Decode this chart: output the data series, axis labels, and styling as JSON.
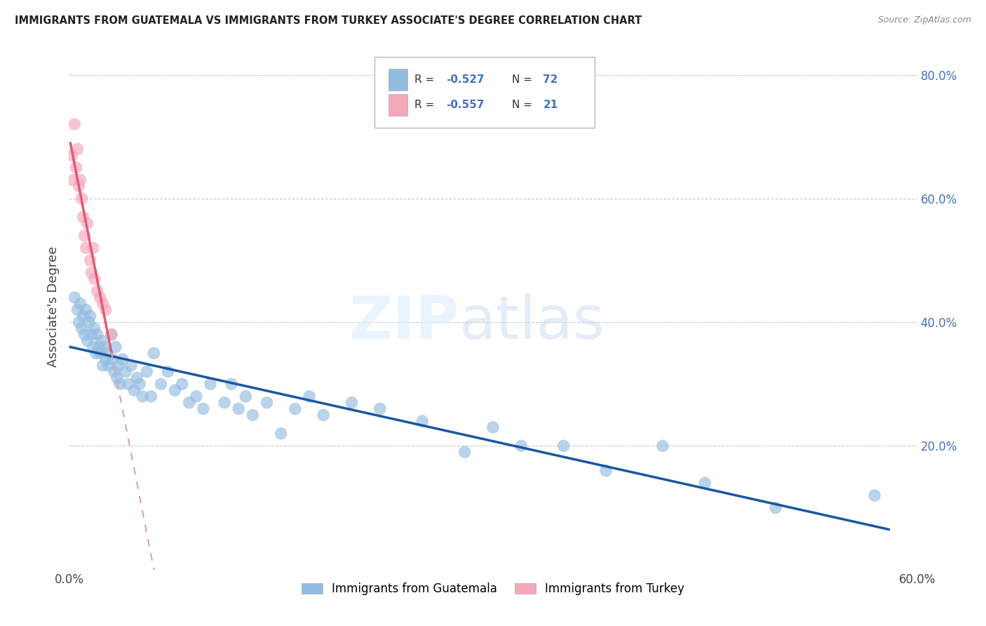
{
  "title": "IMMIGRANTS FROM GUATEMALA VS IMMIGRANTS FROM TURKEY ASSOCIATE'S DEGREE CORRELATION CHART",
  "source": "Source: ZipAtlas.com",
  "ylabel": "Associate's Degree",
  "legend_label1": "Immigrants from Guatemala",
  "legend_label2": "Immigrants from Turkey",
  "r1": "-0.527",
  "n1": "72",
  "r2": "-0.557",
  "n2": "21",
  "xlim": [
    0.0,
    0.6
  ],
  "ylim": [
    0.0,
    0.85
  ],
  "xtick_positions": [
    0.0,
    0.6
  ],
  "xtick_labels": [
    "0.0%",
    "60.0%"
  ],
  "yticks_right": [
    0.2,
    0.4,
    0.6,
    0.8
  ],
  "grid_yticks": [
    0.2,
    0.4,
    0.6,
    0.8
  ],
  "color_blue": "#92bce0",
  "color_pink": "#f4a7b9",
  "color_line_blue": "#1a56a0",
  "color_line_pink": "#e05a7a",
  "color_line_pink_dashed": "#dca0b0",
  "guatemala_x": [
    0.004,
    0.006,
    0.007,
    0.008,
    0.009,
    0.01,
    0.011,
    0.012,
    0.013,
    0.014,
    0.015,
    0.016,
    0.017,
    0.018,
    0.019,
    0.02,
    0.021,
    0.022,
    0.023,
    0.024,
    0.025,
    0.026,
    0.027,
    0.028,
    0.03,
    0.031,
    0.032,
    0.033,
    0.034,
    0.035,
    0.036,
    0.038,
    0.04,
    0.042,
    0.044,
    0.046,
    0.048,
    0.05,
    0.052,
    0.055,
    0.058,
    0.06,
    0.065,
    0.07,
    0.075,
    0.08,
    0.085,
    0.09,
    0.095,
    0.1,
    0.11,
    0.115,
    0.12,
    0.125,
    0.13,
    0.14,
    0.15,
    0.16,
    0.17,
    0.18,
    0.2,
    0.22,
    0.25,
    0.28,
    0.3,
    0.32,
    0.35,
    0.38,
    0.42,
    0.45,
    0.5,
    0.57
  ],
  "guatemala_y": [
    0.44,
    0.42,
    0.4,
    0.43,
    0.39,
    0.41,
    0.38,
    0.42,
    0.37,
    0.4,
    0.41,
    0.38,
    0.36,
    0.39,
    0.35,
    0.38,
    0.36,
    0.35,
    0.37,
    0.33,
    0.36,
    0.34,
    0.35,
    0.33,
    0.38,
    0.34,
    0.32,
    0.36,
    0.31,
    0.33,
    0.3,
    0.34,
    0.32,
    0.3,
    0.33,
    0.29,
    0.31,
    0.3,
    0.28,
    0.32,
    0.28,
    0.35,
    0.3,
    0.32,
    0.29,
    0.3,
    0.27,
    0.28,
    0.26,
    0.3,
    0.27,
    0.3,
    0.26,
    0.28,
    0.25,
    0.27,
    0.22,
    0.26,
    0.28,
    0.25,
    0.27,
    0.26,
    0.24,
    0.19,
    0.23,
    0.2,
    0.2,
    0.16,
    0.2,
    0.14,
    0.1,
    0.12
  ],
  "turkey_x": [
    0.002,
    0.003,
    0.004,
    0.005,
    0.006,
    0.007,
    0.008,
    0.009,
    0.01,
    0.011,
    0.012,
    0.013,
    0.015,
    0.016,
    0.017,
    0.018,
    0.02,
    0.022,
    0.024,
    0.026,
    0.03
  ],
  "turkey_y": [
    0.67,
    0.63,
    0.72,
    0.65,
    0.68,
    0.62,
    0.63,
    0.6,
    0.57,
    0.54,
    0.52,
    0.56,
    0.5,
    0.48,
    0.52,
    0.47,
    0.45,
    0.44,
    0.43,
    0.42,
    0.38
  ],
  "turkey_line_x_start": 0.001,
  "turkey_line_x_solid_end": 0.03,
  "turkey_line_x_dash_end": 0.38,
  "guatemala_line_x_start": 0.001,
  "guatemala_line_x_end": 0.58
}
